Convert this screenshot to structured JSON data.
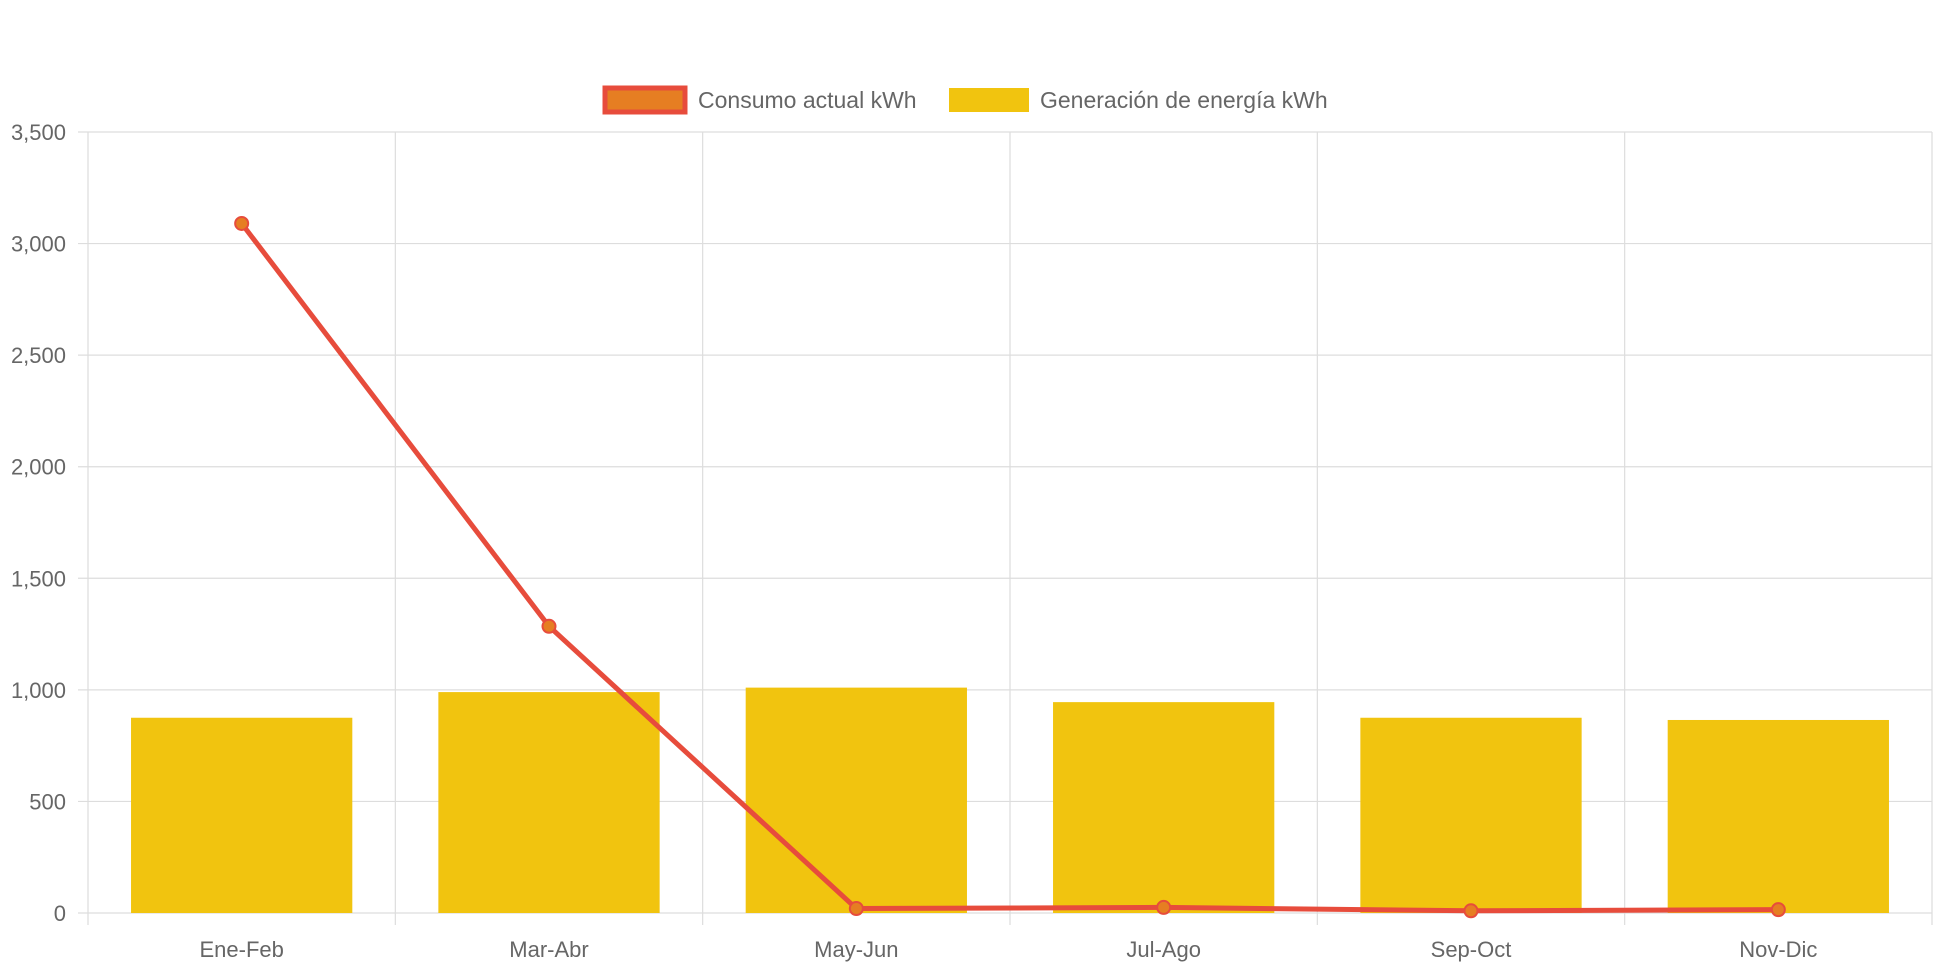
{
  "chart_data": {
    "type": "bar",
    "categories": [
      "Ene-Feb",
      "Mar-Abr",
      "May-Jun",
      "Jul-Ago",
      "Sep-Oct",
      "Nov-Dic"
    ],
    "series": [
      {
        "name": "Consumo actual kWh",
        "type": "line",
        "values": [
          3090,
          1285,
          20,
          25,
          10,
          15
        ],
        "color": "#e74c3c",
        "point_color": "#e67e22"
      },
      {
        "name": "Generación de energía kWh",
        "type": "bar",
        "values": [
          875,
          990,
          1010,
          945,
          875,
          865
        ],
        "color": "#f1c40f"
      }
    ],
    "ylim": [
      0,
      3500
    ],
    "yticks": [
      0,
      500,
      1000,
      1500,
      2000,
      2500,
      3000,
      3500
    ],
    "ytick_labels": [
      "0",
      "500",
      "1,000",
      "1,500",
      "2,000",
      "2,500",
      "3,000",
      "3,500"
    ],
    "grid": true,
    "legend_position": "top"
  },
  "colors": {
    "grid": "#dddddd",
    "axis_text": "#666666"
  }
}
